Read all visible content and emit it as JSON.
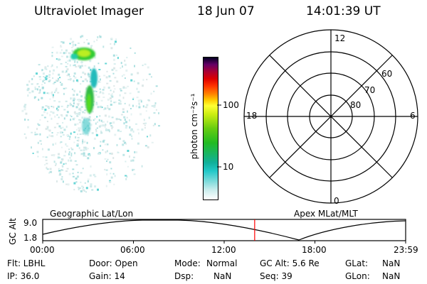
{
  "header": {
    "title": "Ultraviolet Imager",
    "date": "18 Jun 07",
    "time": "14:01:39 UT"
  },
  "colorbar": {
    "unit_label": "photon cm⁻²s⁻¹",
    "ticks": [
      "100",
      "10"
    ]
  },
  "polar": {
    "mlt_labels": [
      "12",
      "18",
      "6",
      "0"
    ],
    "lat_labels": [
      "60",
      "70",
      "80"
    ]
  },
  "orbit": {
    "left_label": "Geographic Lat/Lon",
    "right_label": "Apex MLat/MLT",
    "ylabel": "GC Alt",
    "ymax": "9.0",
    "ymin": "1.8",
    "time_ticks": [
      "00:00",
      "06:00",
      "12:00",
      "18:00",
      "23:59"
    ],
    "current_time_fraction": 0.584,
    "current_time_color": "#ff0000"
  },
  "info": {
    "flt": "Flt: LBHL",
    "ip": "IP: 36.0",
    "door": "Door: Open",
    "gain": "Gain: 14",
    "mode_label": "Mode:",
    "mode_value": "Normal",
    "dsp_label": "Dsp:",
    "dsp_value": "NaN",
    "gcalt": "GC Alt: 5.6 Re",
    "seq": "Seq: 39",
    "glat_label": "GLat:",
    "glat_value": "NaN",
    "glon_label": "GLon:",
    "glon_value": "NaN"
  }
}
